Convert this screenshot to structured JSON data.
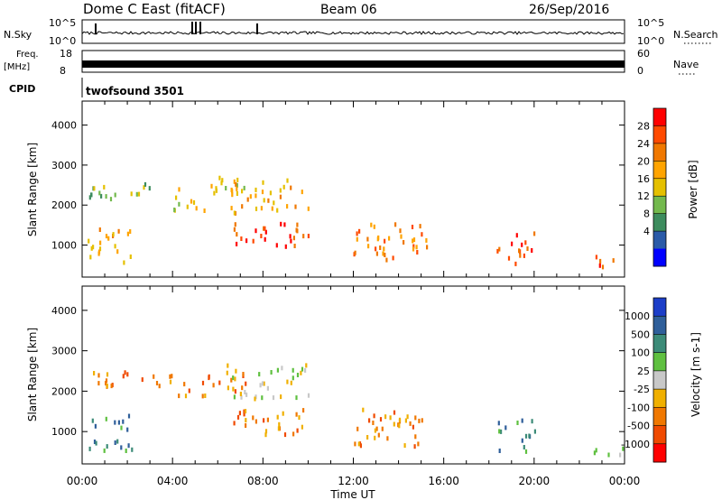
{
  "header": {
    "station": "Dome C East (fitACF)",
    "beam": "Beam 06",
    "date": "26/Sep/2016"
  },
  "params": {
    "nsky_label": "N.Sky",
    "nsky_ticks": [
      "10^5",
      "10^0"
    ],
    "nsearch_label": "N.Search",
    "nsearch_ticks": [
      "10^5",
      "10^0"
    ],
    "freq_label_1": "Freq.",
    "freq_label_2": "[MHz]",
    "freq_ticks": [
      "18",
      "8"
    ],
    "nave_label": "Nave",
    "nave_ticks": [
      "60",
      "0"
    ],
    "cpid_label": "CPID",
    "cpid_value": "twofsound 3501"
  },
  "chart_data": [
    {
      "type": "heatmap",
      "title": "",
      "xlabel": "",
      "ylabel": "Slant Range [km]",
      "xlim": [
        0,
        24
      ],
      "ylim": [
        200,
        4600
      ],
      "yticks": [
        1000,
        2000,
        3000,
        4000
      ],
      "colorbar": {
        "label": "Power [dB]",
        "ticks": [
          "28",
          "24",
          "20",
          "16",
          "12",
          "8",
          "4"
        ],
        "colors": [
          "#ff0000",
          "#ff4a00",
          "#f07800",
          "#ffa400",
          "#e5c000",
          "#73b94d",
          "#3d8c5e",
          "#2a5aa8",
          "#0000ff"
        ]
      },
      "features": [
        {
          "t0": 0.2,
          "t1": 3.6,
          "r0": 2150,
          "r1": 2600,
          "level": 5
        },
        {
          "t0": 3.8,
          "t1": 5.4,
          "r0": 1900,
          "r1": 2450,
          "level": 4
        },
        {
          "t0": 5.5,
          "t1": 7.2,
          "r0": 2050,
          "r1": 2750,
          "level": 4
        },
        {
          "t0": 6.5,
          "t1": 10.0,
          "r0": 1850,
          "r1": 2700,
          "level": 3
        },
        {
          "t0": 0.2,
          "t1": 2.2,
          "r0": 550,
          "r1": 1450,
          "level": 3
        },
        {
          "t0": 6.6,
          "t1": 10.0,
          "r0": 950,
          "r1": 1650,
          "level": 1
        },
        {
          "t0": 12.0,
          "t1": 15.4,
          "r0": 650,
          "r1": 1600,
          "level": 2
        },
        {
          "t0": 18.3,
          "t1": 20.0,
          "r0": 550,
          "r1": 1350,
          "level": 1
        },
        {
          "t0": 22.6,
          "t1": 24.0,
          "r0": 450,
          "r1": 800,
          "level": 1
        }
      ]
    },
    {
      "type": "heatmap",
      "title": "",
      "xlabel": "Time UT",
      "ylabel": "Slant Range [km]",
      "xlim": [
        0,
        24
      ],
      "ylim": [
        200,
        4600
      ],
      "xticks": [
        "00:00",
        "04:00",
        "08:00",
        "12:00",
        "16:00",
        "20:00",
        "00:00"
      ],
      "yticks": [
        1000,
        2000,
        3000,
        4000
      ],
      "colorbar": {
        "label": "Velocity [m s-1]",
        "ticks": [
          "1000",
          "500",
          "100",
          "25",
          "-25",
          "-100",
          "-500",
          "-1000"
        ],
        "colors": [
          "#1c3ec8",
          "#2f5f9a",
          "#3c8b78",
          "#5fc040",
          "#c8c8c8",
          "#f0b000",
          "#f07800",
          "#f04a00",
          "#ff0000"
        ]
      },
      "features": [
        {
          "t0": 0.2,
          "t1": 3.6,
          "r0": 2150,
          "r1": 2600,
          "level": 6
        },
        {
          "t0": 3.8,
          "t1": 5.4,
          "r0": 1900,
          "r1": 2450,
          "level": 6
        },
        {
          "t0": 5.5,
          "t1": 7.2,
          "r0": 2050,
          "r1": 2750,
          "level": 6
        },
        {
          "t0": 6.5,
          "t1": 10.0,
          "r0": 1850,
          "r1": 2700,
          "level": 4
        },
        {
          "t0": 0.2,
          "t1": 2.2,
          "r0": 550,
          "r1": 1450,
          "level": 2
        },
        {
          "t0": 6.6,
          "t1": 10.0,
          "r0": 950,
          "r1": 1650,
          "level": 6
        },
        {
          "t0": 12.0,
          "t1": 15.4,
          "r0": 650,
          "r1": 1600,
          "level": 6
        },
        {
          "t0": 18.3,
          "t1": 20.0,
          "r0": 550,
          "r1": 1350,
          "level": 2
        },
        {
          "t0": 22.6,
          "t1": 24.0,
          "r0": 450,
          "r1": 800,
          "level": 3
        }
      ]
    }
  ]
}
